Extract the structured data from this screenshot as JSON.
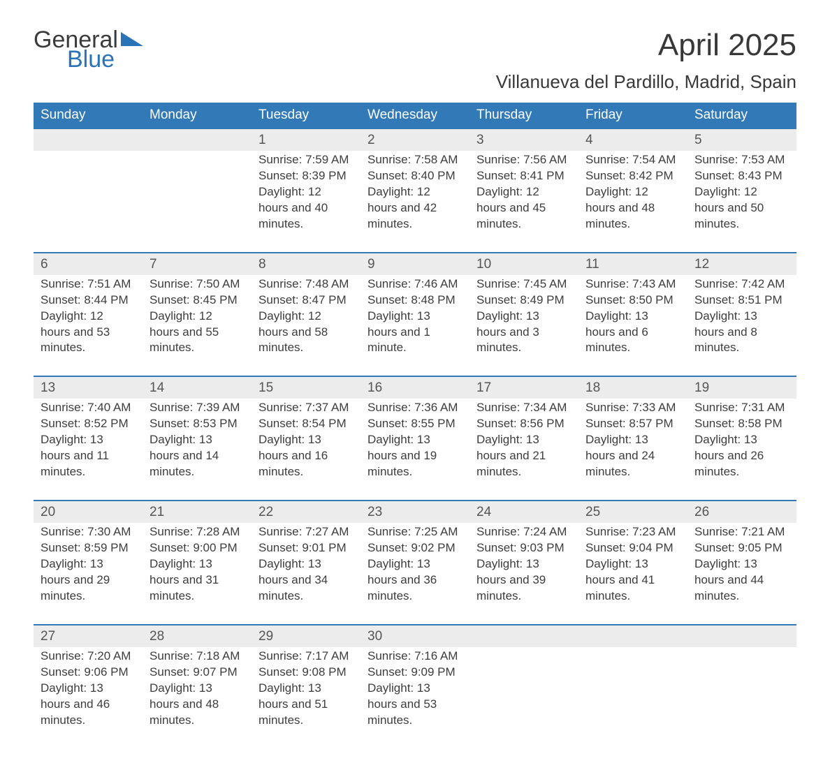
{
  "logo": {
    "text_top": "General",
    "text_bottom": "Blue",
    "accent_color": "#2a73b6",
    "text_color": "#3a3a3a"
  },
  "title": "April 2025",
  "location": "Villanueva del Pardillo, Madrid, Spain",
  "colors": {
    "header_bg": "#3279b7",
    "header_text": "#ffffff",
    "row_divider": "#3279b7",
    "daynum_bg": "#ececec",
    "body_text": "#3d3d3d",
    "daynum_text": "#555555",
    "page_bg": "#ffffff"
  },
  "typography": {
    "title_fontsize": 44,
    "location_fontsize": 26,
    "weekday_fontsize": 19,
    "daynum_fontsize": 19,
    "cell_fontsize": 17,
    "font_family": "Arial"
  },
  "weekdays": [
    "Sunday",
    "Monday",
    "Tuesday",
    "Wednesday",
    "Thursday",
    "Friday",
    "Saturday"
  ],
  "weeks": [
    [
      null,
      null,
      {
        "n": "1",
        "sunrise": "7:59 AM",
        "sunset": "8:39 PM",
        "daylight": "12 hours and 40 minutes."
      },
      {
        "n": "2",
        "sunrise": "7:58 AM",
        "sunset": "8:40 PM",
        "daylight": "12 hours and 42 minutes."
      },
      {
        "n": "3",
        "sunrise": "7:56 AM",
        "sunset": "8:41 PM",
        "daylight": "12 hours and 45 minutes."
      },
      {
        "n": "4",
        "sunrise": "7:54 AM",
        "sunset": "8:42 PM",
        "daylight": "12 hours and 48 minutes."
      },
      {
        "n": "5",
        "sunrise": "7:53 AM",
        "sunset": "8:43 PM",
        "daylight": "12 hours and 50 minutes."
      }
    ],
    [
      {
        "n": "6",
        "sunrise": "7:51 AM",
        "sunset": "8:44 PM",
        "daylight": "12 hours and 53 minutes."
      },
      {
        "n": "7",
        "sunrise": "7:50 AM",
        "sunset": "8:45 PM",
        "daylight": "12 hours and 55 minutes."
      },
      {
        "n": "8",
        "sunrise": "7:48 AM",
        "sunset": "8:47 PM",
        "daylight": "12 hours and 58 minutes."
      },
      {
        "n": "9",
        "sunrise": "7:46 AM",
        "sunset": "8:48 PM",
        "daylight": "13 hours and 1 minute."
      },
      {
        "n": "10",
        "sunrise": "7:45 AM",
        "sunset": "8:49 PM",
        "daylight": "13 hours and 3 minutes."
      },
      {
        "n": "11",
        "sunrise": "7:43 AM",
        "sunset": "8:50 PM",
        "daylight": "13 hours and 6 minutes."
      },
      {
        "n": "12",
        "sunrise": "7:42 AM",
        "sunset": "8:51 PM",
        "daylight": "13 hours and 8 minutes."
      }
    ],
    [
      {
        "n": "13",
        "sunrise": "7:40 AM",
        "sunset": "8:52 PM",
        "daylight": "13 hours and 11 minutes."
      },
      {
        "n": "14",
        "sunrise": "7:39 AM",
        "sunset": "8:53 PM",
        "daylight": "13 hours and 14 minutes."
      },
      {
        "n": "15",
        "sunrise": "7:37 AM",
        "sunset": "8:54 PM",
        "daylight": "13 hours and 16 minutes."
      },
      {
        "n": "16",
        "sunrise": "7:36 AM",
        "sunset": "8:55 PM",
        "daylight": "13 hours and 19 minutes."
      },
      {
        "n": "17",
        "sunrise": "7:34 AM",
        "sunset": "8:56 PM",
        "daylight": "13 hours and 21 minutes."
      },
      {
        "n": "18",
        "sunrise": "7:33 AM",
        "sunset": "8:57 PM",
        "daylight": "13 hours and 24 minutes."
      },
      {
        "n": "19",
        "sunrise": "7:31 AM",
        "sunset": "8:58 PM",
        "daylight": "13 hours and 26 minutes."
      }
    ],
    [
      {
        "n": "20",
        "sunrise": "7:30 AM",
        "sunset": "8:59 PM",
        "daylight": "13 hours and 29 minutes."
      },
      {
        "n": "21",
        "sunrise": "7:28 AM",
        "sunset": "9:00 PM",
        "daylight": "13 hours and 31 minutes."
      },
      {
        "n": "22",
        "sunrise": "7:27 AM",
        "sunset": "9:01 PM",
        "daylight": "13 hours and 34 minutes."
      },
      {
        "n": "23",
        "sunrise": "7:25 AM",
        "sunset": "9:02 PM",
        "daylight": "13 hours and 36 minutes."
      },
      {
        "n": "24",
        "sunrise": "7:24 AM",
        "sunset": "9:03 PM",
        "daylight": "13 hours and 39 minutes."
      },
      {
        "n": "25",
        "sunrise": "7:23 AM",
        "sunset": "9:04 PM",
        "daylight": "13 hours and 41 minutes."
      },
      {
        "n": "26",
        "sunrise": "7:21 AM",
        "sunset": "9:05 PM",
        "daylight": "13 hours and 44 minutes."
      }
    ],
    [
      {
        "n": "27",
        "sunrise": "7:20 AM",
        "sunset": "9:06 PM",
        "daylight": "13 hours and 46 minutes."
      },
      {
        "n": "28",
        "sunrise": "7:18 AM",
        "sunset": "9:07 PM",
        "daylight": "13 hours and 48 minutes."
      },
      {
        "n": "29",
        "sunrise": "7:17 AM",
        "sunset": "9:08 PM",
        "daylight": "13 hours and 51 minutes."
      },
      {
        "n": "30",
        "sunrise": "7:16 AM",
        "sunset": "9:09 PM",
        "daylight": "13 hours and 53 minutes."
      },
      null,
      null,
      null
    ]
  ],
  "labels": {
    "sunrise": "Sunrise: ",
    "sunset": "Sunset: ",
    "daylight": "Daylight: "
  }
}
